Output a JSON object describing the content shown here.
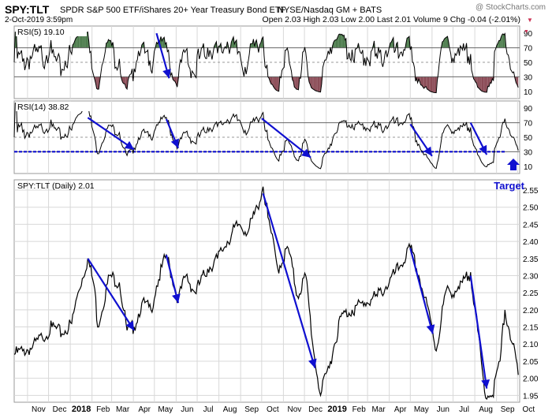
{
  "header": {
    "symbol": "SPY:TLT",
    "description": "SPDR S&P 500 ETF/iShares 20+ Year Treasury Bond ETF",
    "exchange": "NYSE/Nasdaq GM + BATS",
    "watermark": "@ StockCharts.com",
    "datetime": "2-Oct-2019 3:59pm",
    "quote": "Open 2.03  High 2.03  Low 2.00  Last 2.01  Volume 9  Chg -0.04 (-2.01%)",
    "quote_direction": "down"
  },
  "colors": {
    "price_line": "#000000",
    "arrows": "#1010d0",
    "overbought_fill": "#4a7a4a",
    "oversold_fill": "#8a4a55",
    "target_line": "#0000cc",
    "grid": "#d8d8d8"
  },
  "chart_data": [
    {
      "type": "line",
      "panel": "RSI(5)",
      "legend": "RSI(5) 19.10",
      "last_value": 19.1,
      "y_ticks": [
        10,
        30,
        50,
        70,
        90
      ],
      "ylim": [
        0,
        100
      ],
      "reference_lines": [
        30,
        50,
        70
      ],
      "fill_above": 70,
      "fill_below": 30,
      "series_shape": "oscillating",
      "arrows": [
        {
          "from": [
            "2018-05-04",
            90
          ],
          "to": [
            "2018-05-22",
            28
          ]
        }
      ]
    },
    {
      "type": "line",
      "panel": "RSI(14)",
      "legend": "RSI(14) 38.82",
      "last_value": 38.82,
      "y_ticks": [
        10,
        30,
        50,
        70,
        90
      ],
      "ylim": [
        0,
        100
      ],
      "reference_lines": [
        30,
        50,
        70
      ],
      "target_line": 30,
      "arrows": [
        {
          "from": [
            "2018-01-26",
            77
          ],
          "to": [
            "2018-04-02",
            33
          ]
        },
        {
          "from": [
            "2018-05-18",
            75
          ],
          "to": [
            "2018-06-04",
            35
          ]
        },
        {
          "from": [
            "2018-10-01",
            76
          ],
          "to": [
            "2018-12-10",
            22
          ]
        },
        {
          "from": [
            "2019-05-01",
            68
          ],
          "to": [
            "2019-06-01",
            24
          ]
        },
        {
          "from": [
            "2019-07-26",
            70
          ],
          "to": [
            "2019-08-18",
            26
          ]
        }
      ]
    },
    {
      "type": "line",
      "panel": "price",
      "legend": "SPY:TLT (Daily) 2.01",
      "annotation": "Target",
      "y_ticks": [
        1.95,
        2.0,
        2.05,
        2.1,
        2.15,
        2.2,
        2.25,
        2.3,
        2.35,
        2.4,
        2.45,
        2.5,
        2.55
      ],
      "ylim": [
        1.93,
        2.58
      ],
      "x_ticks": [
        "Nov",
        "Dec",
        "2018",
        "Feb",
        "Mar",
        "Apr",
        "May",
        "Jun",
        "Jul",
        "Aug",
        "Sep",
        "Oct",
        "Nov",
        "Dec",
        "2019",
        "Feb",
        "Mar",
        "Apr",
        "May",
        "Jun",
        "Jul",
        "Aug",
        "Sep",
        "Oct"
      ],
      "x_tick_dates": [
        "2017-11-01",
        "2017-12-01",
        "2018-01-01",
        "2018-02-01",
        "2018-03-01",
        "2018-04-01",
        "2018-05-01",
        "2018-06-01",
        "2018-07-01",
        "2018-08-01",
        "2018-09-01",
        "2018-10-01",
        "2018-11-01",
        "2018-12-01",
        "2019-01-01",
        "2019-02-01",
        "2019-03-01",
        "2019-04-01",
        "2019-05-01",
        "2019-06-01",
        "2019-07-01",
        "2019-08-01",
        "2019-09-01",
        "2019-10-01"
      ],
      "xlim": [
        "2017-10-13",
        "2019-10-04"
      ],
      "series": [
        {
          "points": [
            [
              "2017-10-13",
              2.07
            ],
            [
              "2017-10-25",
              2.08
            ],
            [
              "2017-11-08",
              2.09
            ],
            [
              "2017-11-22",
              2.12
            ],
            [
              "2017-12-06",
              2.15
            ],
            [
              "2017-12-20",
              2.13
            ],
            [
              "2018-01-03",
              2.16
            ],
            [
              "2018-01-12",
              2.25
            ],
            [
              "2018-01-26",
              2.35
            ],
            [
              "2018-02-05",
              2.26
            ],
            [
              "2018-02-09",
              2.15
            ],
            [
              "2018-02-26",
              2.3
            ],
            [
              "2018-03-12",
              2.28
            ],
            [
              "2018-03-23",
              2.14
            ],
            [
              "2018-04-02",
              2.15
            ],
            [
              "2018-04-13",
              2.22
            ],
            [
              "2018-04-26",
              2.2
            ],
            [
              "2018-05-04",
              2.27
            ],
            [
              "2018-05-18",
              2.36
            ],
            [
              "2018-06-04",
              2.23
            ],
            [
              "2018-06-15",
              2.3
            ],
            [
              "2018-06-28",
              2.25
            ],
            [
              "2018-07-16",
              2.32
            ],
            [
              "2018-07-30",
              2.35
            ],
            [
              "2018-08-13",
              2.4
            ],
            [
              "2018-08-29",
              2.45
            ],
            [
              "2018-09-12",
              2.43
            ],
            [
              "2018-09-25",
              2.5
            ],
            [
              "2018-10-03",
              2.56
            ],
            [
              "2018-10-10",
              2.47
            ],
            [
              "2018-10-24",
              2.32
            ],
            [
              "2018-11-08",
              2.38
            ],
            [
              "2018-11-21",
              2.24
            ],
            [
              "2018-12-03",
              2.3
            ],
            [
              "2018-12-14",
              2.08
            ],
            [
              "2018-12-24",
              1.95
            ],
            [
              "2019-01-07",
              2.05
            ],
            [
              "2019-01-22",
              2.18
            ],
            [
              "2019-02-07",
              2.2
            ],
            [
              "2019-02-25",
              2.22
            ],
            [
              "2019-03-15",
              2.24
            ],
            [
              "2019-04-01",
              2.28
            ],
            [
              "2019-04-17",
              2.33
            ],
            [
              "2019-05-01",
              2.38
            ],
            [
              "2019-05-13",
              2.3
            ],
            [
              "2019-05-31",
              2.16
            ],
            [
              "2019-06-07",
              2.08
            ],
            [
              "2019-06-20",
              2.25
            ],
            [
              "2019-07-10",
              2.26
            ],
            [
              "2019-07-26",
              2.31
            ],
            [
              "2019-08-05",
              2.14
            ],
            [
              "2019-08-15",
              1.96
            ],
            [
              "2019-08-26",
              1.95
            ],
            [
              "2019-09-06",
              2.05
            ],
            [
              "2019-09-13",
              2.2
            ],
            [
              "2019-09-24",
              2.1
            ],
            [
              "2019-10-02",
              2.01
            ]
          ]
        }
      ],
      "arrows": [
        {
          "from": [
            "2018-01-26",
            2.35
          ],
          "to": [
            "2018-04-02",
            2.14
          ]
        },
        {
          "from": [
            "2018-05-18",
            2.36
          ],
          "to": [
            "2018-06-04",
            2.22
          ]
        },
        {
          "from": [
            "2018-10-03",
            2.54
          ],
          "to": [
            "2018-12-16",
            2.03
          ]
        },
        {
          "from": [
            "2019-05-01",
            2.38
          ],
          "to": [
            "2019-06-02",
            2.13
          ]
        },
        {
          "from": [
            "2019-07-26",
            2.3
          ],
          "to": [
            "2019-08-18",
            1.97
          ]
        }
      ]
    }
  ]
}
